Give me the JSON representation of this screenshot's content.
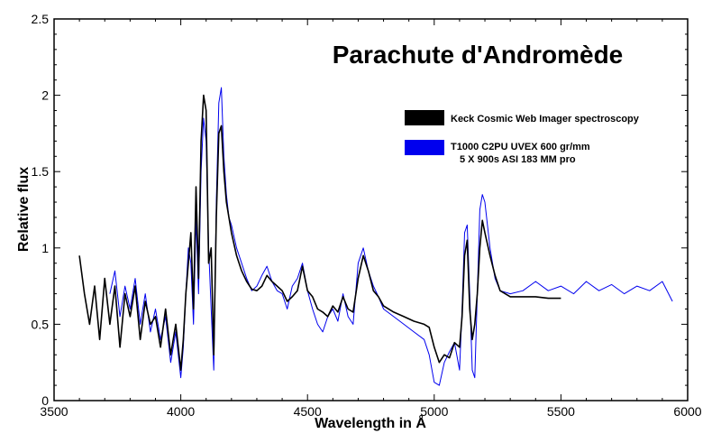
{
  "chart_data": {
    "type": "line",
    "title": "Parachute d'Andromède",
    "xlabel": "Wavelength in Å",
    "ylabel": "Relative flux",
    "xlim": [
      3500,
      6000
    ],
    "ylim": [
      0,
      2.5
    ],
    "xticks": [
      3500,
      4000,
      4500,
      5000,
      5500,
      6000
    ],
    "yticks": [
      0,
      0.5,
      1,
      1.5,
      2,
      2.5
    ],
    "xtick_labels": [
      "3500",
      "4000",
      "4500",
      "5000",
      "5500",
      "6000"
    ],
    "ytick_labels": [
      "0",
      "0.5",
      "1",
      "1.5",
      "2",
      "2.5"
    ],
    "grid": false,
    "legend_position": "top-right",
    "series": [
      {
        "name": "Keck Cosmic Web Imager spectroscopy",
        "color": "#000000",
        "x": [
          3600,
          3620,
          3640,
          3660,
          3680,
          3700,
          3720,
          3740,
          3760,
          3780,
          3800,
          3820,
          3840,
          3860,
          3880,
          3900,
          3920,
          3940,
          3960,
          3980,
          4000,
          4010,
          4020,
          4030,
          4040,
          4050,
          4060,
          4070,
          4080,
          4090,
          4100,
          4110,
          4120,
          4130,
          4140,
          4150,
          4160,
          4170,
          4180,
          4190,
          4200,
          4220,
          4240,
          4260,
          4280,
          4300,
          4320,
          4340,
          4360,
          4380,
          4400,
          4420,
          4440,
          4460,
          4480,
          4500,
          4520,
          4540,
          4560,
          4580,
          4600,
          4620,
          4640,
          4660,
          4680,
          4700,
          4720,
          4740,
          4760,
          4780,
          4800,
          4840,
          4880,
          4920,
          4960,
          4980,
          5000,
          5020,
          5040,
          5060,
          5080,
          5100,
          5110,
          5120,
          5130,
          5140,
          5150,
          5160,
          5170,
          5180,
          5190,
          5200,
          5220,
          5240,
          5260,
          5300,
          5350,
          5400,
          5450,
          5500
        ],
        "y": [
          0.95,
          0.7,
          0.5,
          0.75,
          0.4,
          0.8,
          0.5,
          0.75,
          0.35,
          0.7,
          0.55,
          0.75,
          0.4,
          0.65,
          0.5,
          0.55,
          0.35,
          0.6,
          0.3,
          0.5,
          0.2,
          0.4,
          0.7,
          0.9,
          1.1,
          0.6,
          1.4,
          0.8,
          1.7,
          2.0,
          1.9,
          0.9,
          1.0,
          0.3,
          1.2,
          1.75,
          1.8,
          1.5,
          1.3,
          1.2,
          1.1,
          0.95,
          0.85,
          0.78,
          0.73,
          0.72,
          0.75,
          0.82,
          0.78,
          0.75,
          0.72,
          0.65,
          0.68,
          0.72,
          0.88,
          0.72,
          0.68,
          0.6,
          0.58,
          0.55,
          0.62,
          0.58,
          0.68,
          0.6,
          0.58,
          0.8,
          0.95,
          0.85,
          0.72,
          0.68,
          0.62,
          0.58,
          0.55,
          0.52,
          0.5,
          0.48,
          0.35,
          0.25,
          0.3,
          0.28,
          0.38,
          0.35,
          0.55,
          0.95,
          1.05,
          0.6,
          0.4,
          0.5,
          0.7,
          1.0,
          1.18,
          1.1,
          0.95,
          0.82,
          0.72,
          0.68,
          0.68,
          0.68,
          0.67,
          0.67
        ]
      },
      {
        "name": "T1000 C2PU UVEX 600 gr/mm\n5 X 900s ASI 183 MM pro",
        "color": "#0000ee",
        "x": [
          3720,
          3740,
          3760,
          3780,
          3800,
          3820,
          3840,
          3860,
          3880,
          3900,
          3920,
          3940,
          3960,
          3980,
          4000,
          4010,
          4020,
          4030,
          4040,
          4050,
          4060,
          4070,
          4080,
          4090,
          4100,
          4110,
          4120,
          4130,
          4140,
          4150,
          4160,
          4170,
          4180,
          4190,
          4200,
          4220,
          4240,
          4260,
          4280,
          4300,
          4320,
          4340,
          4360,
          4380,
          4400,
          4420,
          4440,
          4460,
          4480,
          4500,
          4520,
          4540,
          4560,
          4580,
          4600,
          4620,
          4640,
          4660,
          4680,
          4700,
          4720,
          4740,
          4760,
          4780,
          4800,
          4840,
          4880,
          4920,
          4960,
          4980,
          5000,
          5020,
          5040,
          5060,
          5080,
          5100,
          5110,
          5120,
          5130,
          5140,
          5150,
          5160,
          5170,
          5180,
          5190,
          5200,
          5220,
          5240,
          5260,
          5300,
          5350,
          5400,
          5450,
          5500,
          5550,
          5600,
          5650,
          5700,
          5750,
          5800,
          5850,
          5900,
          5940
        ],
        "y": [
          0.7,
          0.85,
          0.55,
          0.75,
          0.6,
          0.8,
          0.5,
          0.7,
          0.45,
          0.6,
          0.4,
          0.55,
          0.25,
          0.45,
          0.15,
          0.35,
          0.7,
          1.0,
          0.9,
          0.5,
          1.2,
          0.7,
          1.5,
          1.85,
          1.7,
          1.0,
          0.6,
          0.2,
          1.3,
          1.95,
          2.05,
          1.6,
          1.35,
          1.2,
          1.15,
          1.0,
          0.9,
          0.8,
          0.72,
          0.75,
          0.82,
          0.88,
          0.78,
          0.72,
          0.7,
          0.6,
          0.75,
          0.8,
          0.9,
          0.72,
          0.6,
          0.5,
          0.45,
          0.55,
          0.6,
          0.52,
          0.7,
          0.55,
          0.5,
          0.9,
          1.0,
          0.85,
          0.75,
          0.68,
          0.6,
          0.55,
          0.5,
          0.45,
          0.4,
          0.3,
          0.12,
          0.1,
          0.25,
          0.32,
          0.38,
          0.2,
          0.6,
          1.1,
          1.15,
          0.7,
          0.2,
          0.15,
          0.7,
          1.25,
          1.35,
          1.3,
          1.0,
          0.8,
          0.72,
          0.7,
          0.72,
          0.78,
          0.72,
          0.75,
          0.7,
          0.78,
          0.72,
          0.76,
          0.7,
          0.75,
          0.72,
          0.78,
          0.65
        ]
      }
    ]
  }
}
